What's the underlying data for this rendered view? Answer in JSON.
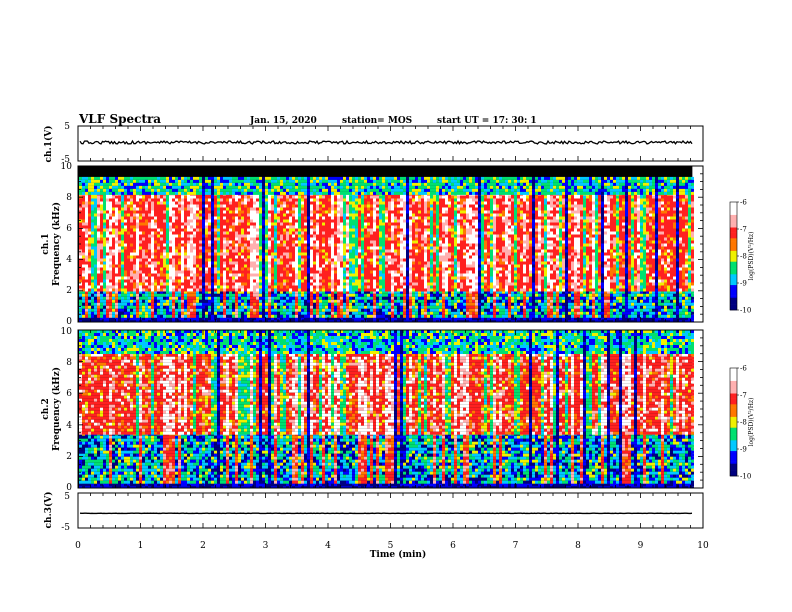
{
  "header": {
    "title": "VLF Spectra",
    "date": "Jan. 15, 2020",
    "station": "station= MOS",
    "start_ut": "start UT =  17: 30: 1"
  },
  "chart_data": [
    {
      "type": "line",
      "name": "channel-1-waveform",
      "ylabel": "ch.1(V)",
      "ylim": [
        -5,
        5
      ],
      "y_ticks": [
        "5",
        "-5"
      ],
      "description_level": 0.3
    },
    {
      "type": "heatmap",
      "name": "channel-1-spectrogram",
      "ylabel": [
        "ch.1",
        "Frequency (kHz)"
      ],
      "ylim": [
        0,
        10
      ],
      "y_ticks": [
        "0",
        "2",
        "4",
        "6",
        "8",
        "10"
      ],
      "colorbar": {
        "label": "log(PSD)(V²/Hz)",
        "range": [
          -10,
          -6
        ],
        "ticks": [
          "-6",
          "-7",
          "-8",
          "-9",
          "-10"
        ],
        "colors": [
          "#000080",
          "#0000ff",
          "#00c8ff",
          "#00e070",
          "#f0f000",
          "#ff7700",
          "#ff2020",
          "#ffb0b0",
          "#ffffff"
        ]
      },
      "bands": [
        {
          "f_low": 0.0,
          "f_high": 0.3,
          "level": "noise"
        },
        {
          "f_low": 0.3,
          "f_high": 2.0,
          "level": "medium"
        },
        {
          "f_low": 2.0,
          "f_high": 8.3,
          "level": "high"
        },
        {
          "f_low": 8.3,
          "f_high": 9.3,
          "level": "falloff"
        },
        {
          "f_low": 9.3,
          "f_high": 10.0,
          "level": "none"
        }
      ]
    },
    {
      "type": "heatmap",
      "name": "channel-2-spectrogram",
      "ylabel": [
        "ch.2",
        "Frequency (kHz)"
      ],
      "ylim": [
        0,
        10
      ],
      "y_ticks": [
        "0",
        "2",
        "4",
        "6",
        "8",
        "10"
      ],
      "colorbar": {
        "label": "log(PSD)(V²/Hz)",
        "range": [
          -10,
          -6
        ],
        "ticks": [
          "-6",
          "-7",
          "-8",
          "-9",
          "-10"
        ],
        "colors": [
          "#000080",
          "#0000ff",
          "#00c8ff",
          "#00e070",
          "#f0f000",
          "#ff7700",
          "#ff2020",
          "#ffb0b0",
          "#ffffff"
        ]
      },
      "bands": [
        {
          "f_low": 0.0,
          "f_high": 0.3,
          "level": "noise"
        },
        {
          "f_low": 0.3,
          "f_high": 3.5,
          "level": "medium"
        },
        {
          "f_low": 3.5,
          "f_high": 8.5,
          "level": "high"
        },
        {
          "f_low": 8.5,
          "f_high": 10.0,
          "level": "falloff"
        }
      ]
    },
    {
      "type": "line",
      "name": "channel-3-waveform",
      "ylabel": "ch.3(V)",
      "ylim": [
        -5,
        5
      ],
      "y_ticks": [
        "5",
        "-5"
      ],
      "description_level": -0.8
    }
  ],
  "x_axis": {
    "label": "Time (min)",
    "range": [
      0,
      10
    ],
    "ticks": [
      "0",
      "1",
      "2",
      "3",
      "4",
      "5",
      "6",
      "7",
      "8",
      "9",
      "10"
    ],
    "data_end": 9.83
  }
}
